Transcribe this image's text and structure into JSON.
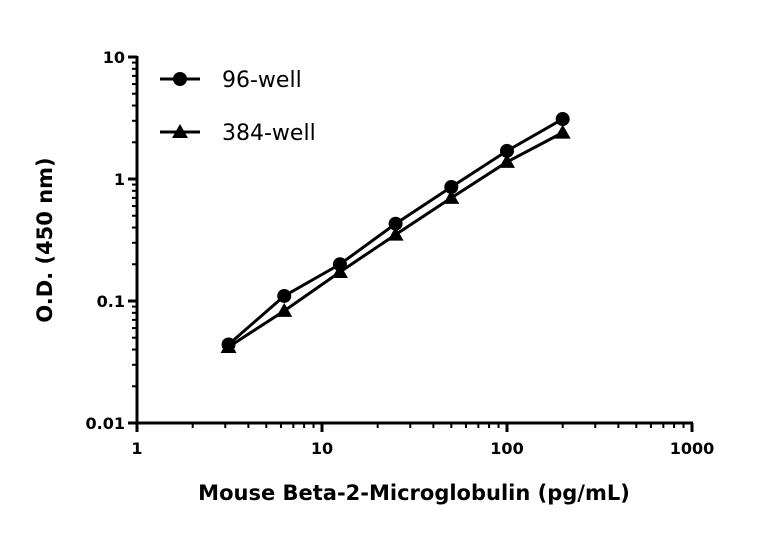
{
  "chart_data": {
    "type": "line",
    "title": "",
    "xlabel": "Mouse Beta-2-Microglobulin (pg/mL)",
    "ylabel": "O.D. (450 nm)",
    "xscale": "log",
    "yscale": "log",
    "xlim": [
      1,
      1000
    ],
    "ylim": [
      0.01,
      10
    ],
    "xticks": [
      "1",
      "10",
      "100",
      "1000"
    ],
    "yticks": [
      "0.01",
      "0.1",
      "1",
      "10"
    ],
    "grid": false,
    "legend_position": "top-left",
    "x": [
      3.125,
      6.25,
      12.5,
      25,
      50,
      100,
      200
    ],
    "series": [
      {
        "name": "96-well",
        "marker": "circle",
        "values": [
          0.044,
          0.11,
          0.2,
          0.43,
          0.86,
          1.7,
          3.1
        ]
      },
      {
        "name": "384-well",
        "marker": "triangle",
        "values": [
          0.042,
          0.083,
          0.173,
          0.35,
          0.7,
          1.38,
          2.4
        ]
      }
    ],
    "color": "#000000"
  }
}
